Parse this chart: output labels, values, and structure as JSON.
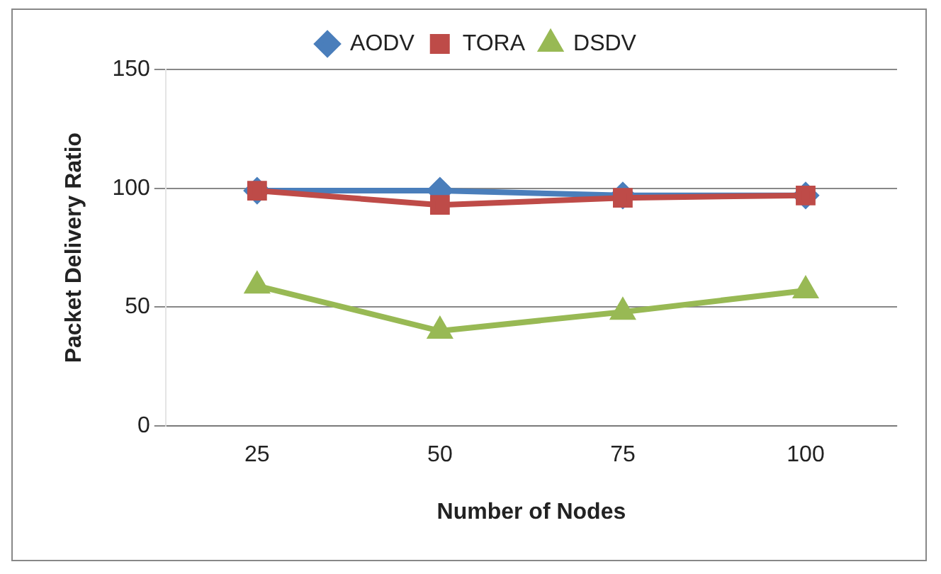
{
  "chart_data": {
    "type": "line",
    "xlabel": "Number of Nodes",
    "ylabel": "Packet Delivery Ratio",
    "categories": [
      "25",
      "50",
      "75",
      "100"
    ],
    "series": [
      {
        "name": "AODV",
        "color": "#4a7ebb",
        "marker": "diamond",
        "values": [
          99,
          99,
          97,
          97
        ]
      },
      {
        "name": "TORA",
        "color": "#be4b48",
        "marker": "square",
        "values": [
          99,
          93,
          96,
          97
        ]
      },
      {
        "name": "DSDV",
        "color": "#98b954",
        "marker": "triangle",
        "values": [
          59,
          40,
          48,
          57
        ]
      }
    ],
    "ylim": [
      0,
      150
    ],
    "yticks": [
      0,
      50,
      100,
      150
    ],
    "grid": "y",
    "legend": "top"
  }
}
